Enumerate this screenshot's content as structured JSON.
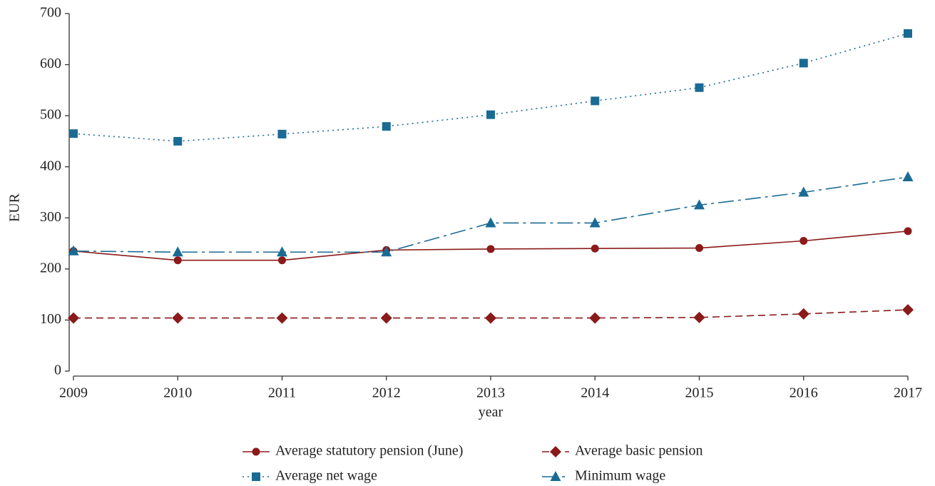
{
  "chart_data": {
    "type": "line",
    "x_label": "year",
    "y_label": "EUR",
    "x": [
      2009,
      2010,
      2011,
      2012,
      2013,
      2014,
      2015,
      2016,
      2017
    ],
    "xlim": [
      2009,
      2017
    ],
    "xticks": [
      2009,
      2010,
      2011,
      2012,
      2013,
      2014,
      2015,
      2016,
      2017
    ],
    "ylim": [
      0,
      700
    ],
    "yticks": [
      0,
      100,
      200,
      300,
      400,
      500,
      600,
      700
    ],
    "series": [
      {
        "name": "Average statutory pension (June)",
        "color": "#8b1a1a",
        "marker": "circle",
        "line_style": "solid",
        "values": [
          235,
          217,
          217,
          237,
          239,
          240,
          241,
          255,
          274
        ]
      },
      {
        "name": "Average basic pension",
        "color": "#8b1a1a",
        "marker": "diamond",
        "line_style": "dashed",
        "values": [
          104,
          104,
          104,
          104,
          104,
          104,
          105,
          112,
          120
        ]
      },
      {
        "name": "Average net wage",
        "color": "#1a6b94",
        "marker": "square",
        "line_style": "dotted",
        "values": [
          465,
          450,
          464,
          479,
          502,
          529,
          555,
          603,
          661
        ]
      },
      {
        "name": "Minimum wage",
        "color": "#1a6b94",
        "marker": "triangle",
        "line_style": "dashdot",
        "values": [
          235,
          233,
          233,
          233,
          290,
          290,
          325,
          350,
          380
        ]
      }
    ]
  }
}
